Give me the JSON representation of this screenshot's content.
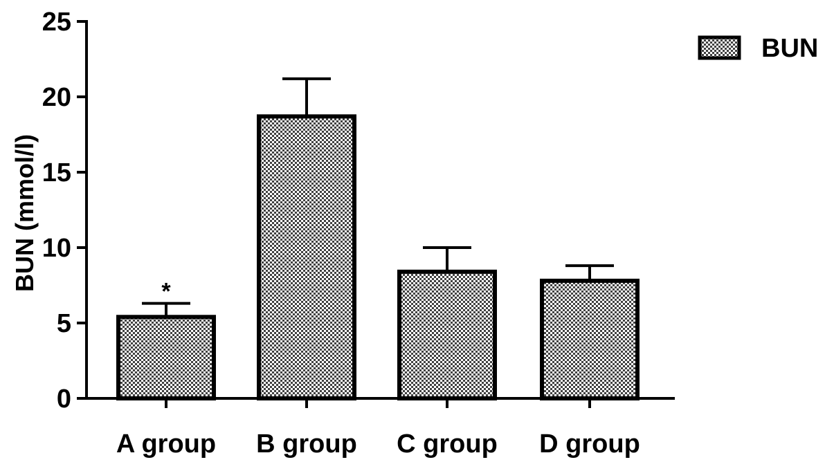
{
  "chart_data": {
    "type": "bar",
    "categories": [
      "A group",
      "B group",
      "C group",
      "D group"
    ],
    "series": [
      {
        "name": "BUN",
        "values": [
          5.4,
          18.7,
          8.4,
          7.8
        ],
        "error": [
          0.9,
          2.5,
          1.6,
          1.0
        ]
      }
    ],
    "annotations": [
      {
        "category": "A group",
        "text": "*"
      }
    ],
    "title": "",
    "xlabel": "",
    "ylabel": "BUN (mmol/l)",
    "ylim": [
      0,
      25
    ],
    "yticks": [
      0,
      5,
      10,
      15,
      20,
      25
    ],
    "grid": false,
    "legend": {
      "position": "top-right",
      "entries": [
        "BUN"
      ]
    },
    "bar_pattern": "checkered",
    "colors": {
      "bar_fill": "#555555",
      "bar_pattern_light": "#ffffff",
      "stroke": "#000000"
    }
  }
}
